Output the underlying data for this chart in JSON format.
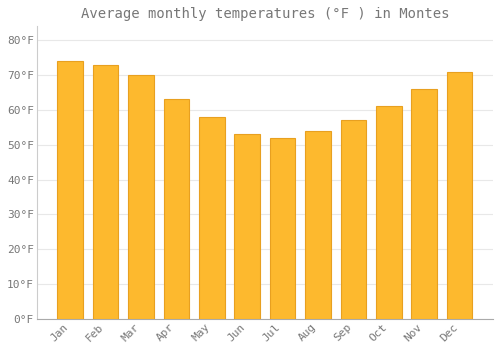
{
  "title": "Average monthly temperatures (°F ) in Montes",
  "months": [
    "Jan",
    "Feb",
    "Mar",
    "Apr",
    "May",
    "Jun",
    "Jul",
    "Aug",
    "Sep",
    "Oct",
    "Nov",
    "Dec"
  ],
  "values": [
    74,
    73,
    70,
    63,
    58,
    53,
    52,
    54,
    57,
    61,
    66,
    71
  ],
  "bar_color": "#FDB92E",
  "bar_edge_color": "#E8A020",
  "background_color": "#FFFFFF",
  "ylim": [
    0,
    84
  ],
  "yticks": [
    0,
    10,
    20,
    30,
    40,
    50,
    60,
    70,
    80
  ],
  "ytick_labels": [
    "0°F",
    "10°F",
    "20°F",
    "30°F",
    "40°F",
    "50°F",
    "60°F",
    "70°F",
    "80°F"
  ],
  "title_fontsize": 10,
  "tick_fontsize": 8,
  "grid_color": "#E8E8E8",
  "font_color": "#777777"
}
